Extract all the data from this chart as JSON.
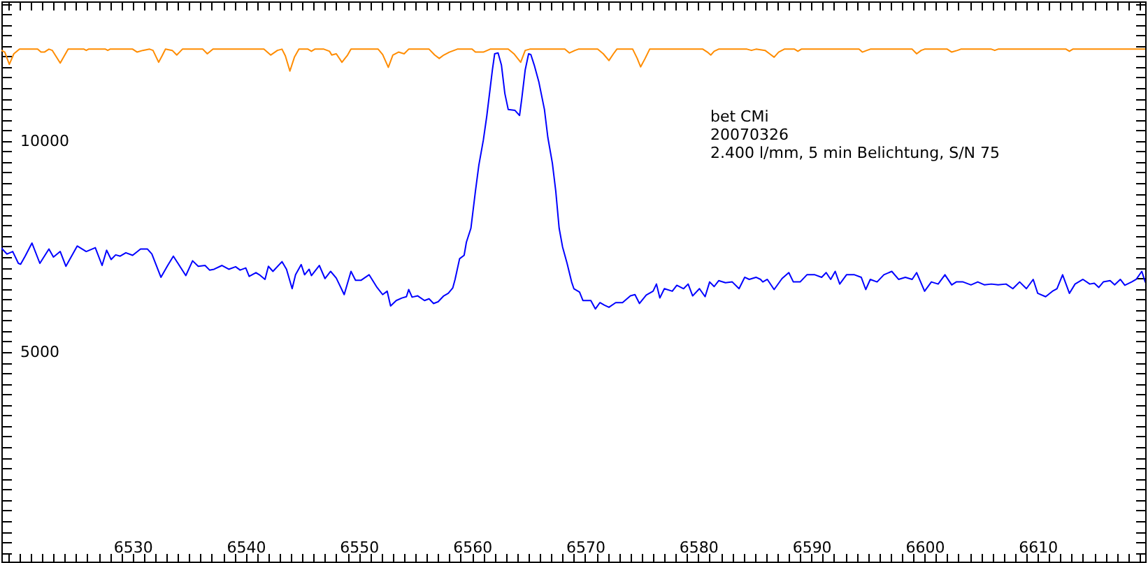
{
  "chart_data": {
    "type": "line",
    "annotations": [
      "bet CMi",
      "20070326",
      "2.400 l/mm, 5 min Belichtung, S/N 75"
    ],
    "xlim": [
      6518.4,
      6619.5
    ],
    "ylim": [
      40,
      13300
    ],
    "xticks": [
      {
        "value": 6519,
        "label": null
      },
      {
        "value": 6520,
        "label": null
      },
      {
        "value": 6521,
        "label": null
      },
      {
        "value": 6522,
        "label": null
      },
      {
        "value": 6523,
        "label": null
      },
      {
        "value": 6524,
        "label": null
      },
      {
        "value": 6525,
        "label": null
      },
      {
        "value": 6526,
        "label": null
      },
      {
        "value": 6527,
        "label": null
      },
      {
        "value": 6528,
        "label": null
      },
      {
        "value": 6529,
        "label": null
      },
      6530,
      {
        "value": 6531,
        "label": null
      },
      {
        "value": 6532,
        "label": null
      },
      {
        "value": 6533,
        "label": null
      },
      {
        "value": 6534,
        "label": null
      },
      {
        "value": 6535,
        "label": null
      },
      {
        "value": 6536,
        "label": null
      },
      {
        "value": 6537,
        "label": null
      },
      {
        "value": 6538,
        "label": null
      },
      {
        "value": 6539,
        "label": null
      },
      6540,
      {
        "value": 6541,
        "label": null
      },
      {
        "value": 6542,
        "label": null
      },
      {
        "value": 6543,
        "label": null
      },
      {
        "value": 6544,
        "label": null
      },
      {
        "value": 6545,
        "label": null
      },
      {
        "value": 6546,
        "label": null
      },
      {
        "value": 6547,
        "label": null
      },
      {
        "value": 6548,
        "label": null
      },
      {
        "value": 6549,
        "label": null
      },
      6550,
      {
        "value": 6551,
        "label": null
      },
      {
        "value": 6552,
        "label": null
      },
      {
        "value": 6553,
        "label": null
      },
      {
        "value": 6554,
        "label": null
      },
      {
        "value": 6555,
        "label": null
      },
      {
        "value": 6556,
        "label": null
      },
      {
        "value": 6557,
        "label": null
      },
      {
        "value": 6558,
        "label": null
      },
      {
        "value": 6559,
        "label": null
      },
      6560,
      {
        "value": 6561,
        "label": null
      },
      {
        "value": 6562,
        "label": null
      },
      {
        "value": 6563,
        "label": null
      },
      {
        "value": 6564,
        "label": null
      },
      {
        "value": 6565,
        "label": null
      },
      {
        "value": 6566,
        "label": null
      },
      {
        "value": 6567,
        "label": null
      },
      {
        "value": 6568,
        "label": null
      },
      {
        "value": 6569,
        "label": null
      },
      6570,
      {
        "value": 6571,
        "label": null
      },
      {
        "value": 6572,
        "label": null
      },
      {
        "value": 6573,
        "label": null
      },
      {
        "value": 6574,
        "label": null
      },
      {
        "value": 6575,
        "label": null
      },
      {
        "value": 6576,
        "label": null
      },
      {
        "value": 6577,
        "label": null
      },
      {
        "value": 6578,
        "label": null
      },
      {
        "value": 6579,
        "label": null
      },
      6580,
      {
        "value": 6581,
        "label": null
      },
      {
        "value": 6582,
        "label": null
      },
      {
        "value": 6583,
        "label": null
      },
      {
        "value": 6584,
        "label": null
      },
      {
        "value": 6585,
        "label": null
      },
      {
        "value": 6586,
        "label": null
      },
      {
        "value": 6587,
        "label": null
      },
      {
        "value": 6588,
        "label": null
      },
      {
        "value": 6589,
        "label": null
      },
      6590,
      {
        "value": 6591,
        "label": null
      },
      {
        "value": 6592,
        "label": null
      },
      {
        "value": 6593,
        "label": null
      },
      {
        "value": 6594,
        "label": null
      },
      {
        "value": 6595,
        "label": null
      },
      {
        "value": 6596,
        "label": null
      },
      {
        "value": 6597,
        "label": null
      },
      {
        "value": 6598,
        "label": null
      },
      {
        "value": 6599,
        "label": null
      },
      6600,
      {
        "value": 6601,
        "label": null
      },
      {
        "value": 6602,
        "label": null
      },
      {
        "value": 6603,
        "label": null
      },
      {
        "value": 6604,
        "label": null
      },
      {
        "value": 6605,
        "label": null
      },
      {
        "value": 6606,
        "label": null
      },
      {
        "value": 6607,
        "label": null
      },
      {
        "value": 6608,
        "label": null
      },
      {
        "value": 6609,
        "label": null
      },
      6610,
      {
        "value": 6611,
        "label": null
      },
      {
        "value": 6612,
        "label": null
      },
      {
        "value": 6613,
        "label": null
      },
      {
        "value": 6614,
        "label": null
      },
      {
        "value": 6615,
        "label": null
      },
      {
        "value": 6616,
        "label": null
      },
      {
        "value": 6617,
        "label": null
      },
      {
        "value": 6618,
        "label": null
      },
      {
        "value": 6619,
        "label": null
      }
    ],
    "yticks": [
      {
        "value": 250,
        "label": null
      },
      {
        "value": 500,
        "label": null
      },
      {
        "value": 750,
        "label": null
      },
      {
        "value": 1000,
        "label": null
      },
      {
        "value": 1250,
        "label": null
      },
      {
        "value": 1500,
        "label": null
      },
      {
        "value": 1750,
        "label": null
      },
      {
        "value": 2000,
        "label": null
      },
      {
        "value": 2250,
        "label": null
      },
      {
        "value": 2500,
        "label": null
      },
      {
        "value": 2750,
        "label": null
      },
      {
        "value": 3000,
        "label": null
      },
      {
        "value": 3250,
        "label": null
      },
      {
        "value": 3500,
        "label": null
      },
      {
        "value": 3750,
        "label": null
      },
      {
        "value": 4000,
        "label": null
      },
      {
        "value": 4250,
        "label": null
      },
      {
        "value": 4500,
        "label": null
      },
      {
        "value": 4750,
        "label": null
      },
      5000,
      {
        "value": 5250,
        "label": null
      },
      {
        "value": 5500,
        "label": null
      },
      {
        "value": 5750,
        "label": null
      },
      {
        "value": 6000,
        "label": null
      },
      {
        "value": 6250,
        "label": null
      },
      {
        "value": 6500,
        "label": null
      },
      {
        "value": 6750,
        "label": null
      },
      {
        "value": 7000,
        "label": null
      },
      {
        "value": 7250,
        "label": null
      },
      {
        "value": 7500,
        "label": null
      },
      {
        "value": 7750,
        "label": null
      },
      {
        "value": 8000,
        "label": null
      },
      {
        "value": 8250,
        "label": null
      },
      {
        "value": 8500,
        "label": null
      },
      {
        "value": 8750,
        "label": null
      },
      {
        "value": 9000,
        "label": null
      },
      {
        "value": 9250,
        "label": null
      },
      {
        "value": 9500,
        "label": null
      },
      {
        "value": 9750,
        "label": null
      },
      10000,
      {
        "value": 10250,
        "label": null
      },
      {
        "value": 10500,
        "label": null
      },
      {
        "value": 10750,
        "label": null
      },
      {
        "value": 11000,
        "label": null
      },
      {
        "value": 11250,
        "label": null
      },
      {
        "value": 11500,
        "label": null
      },
      {
        "value": 11750,
        "label": null
      },
      {
        "value": 12000,
        "label": null
      },
      {
        "value": 12250,
        "label": null
      },
      {
        "value": 12500,
        "label": null
      },
      {
        "value": 12750,
        "label": null
      },
      {
        "value": 13000,
        "label": null
      },
      {
        "value": 13250,
        "label": null
      }
    ],
    "series": [
      {
        "color": "#0000ff",
        "x": [
          6518.4,
          6518.9,
          6519.4,
          6519.9,
          6520.1,
          6520.5,
          6521.1,
          6521.8,
          6522.6,
          6523.0,
          6523.6,
          6524.1,
          6525.1,
          6525.9,
          6526.7,
          6527.3,
          6527.7,
          6528.1,
          6528.5,
          6528.9,
          6529.4,
          6530.0,
          6530.7,
          6531.3,
          6531.7,
          6532.5,
          6533.1,
          6533.6,
          6534.7,
          6535.3,
          6535.8,
          6536.4,
          6536.8,
          6537.2,
          6537.9,
          6538.5,
          6539.1,
          6539.5,
          6540.0,
          6540.3,
          6540.9,
          6541.2,
          6541.7,
          6542.0,
          6542.4,
          6543.2,
          6543.6,
          6544.1,
          6544.4,
          6544.9,
          6545.2,
          6545.6,
          6545.8,
          6546.5,
          6547.0,
          6547.5,
          6548.0,
          6548.7,
          6549.3,
          6549.7,
          6550.2,
          6550.9,
          6551.6,
          6552.1,
          6552.5,
          6552.8,
          6553.3,
          6553.8,
          6554.2,
          6554.4,
          6554.7,
          6555.2,
          6555.8,
          6556.2,
          6556.6,
          6557.0,
          6557.5,
          6557.9,
          6558.3,
          6558.5,
          6558.9,
          6559.3,
          6559.5,
          6559.9,
          6560.1,
          6560.3,
          6560.6,
          6561.0,
          6561.3,
          6561.6,
          6561.8,
          6562.0,
          6562.3,
          6562.6,
          6562.9,
          6563.2,
          6563.8,
          6564.2,
          6564.4,
          6564.7,
          6565.0,
          6565.2,
          6565.5,
          6565.9,
          6566.4,
          6566.7,
          6567.1,
          6567.4,
          6567.7,
          6568.0,
          6568.4,
          6568.8,
          6569.0,
          6569.5,
          6569.8,
          6570.5,
          6570.9,
          6571.3,
          6571.7,
          6572.1,
          6572.7,
          6573.3,
          6574.0,
          6574.4,
          6574.8,
          6575.4,
          6576.0,
          6576.3,
          6576.6,
          6577.0,
          6577.7,
          6578.1,
          6578.7,
          6579.1,
          6579.5,
          6580.1,
          6580.6,
          6581.0,
          6581.4,
          6581.8,
          6582.4,
          6583.0,
          6583.6,
          6584.1,
          6584.5,
          6585.1,
          6585.5,
          6585.7,
          6586.1,
          6586.7,
          6587.4,
          6588.0,
          6588.4,
          6589.0,
          6589.6,
          6590.3,
          6590.9,
          6591.3,
          6591.7,
          6592.1,
          6592.5,
          6593.1,
          6593.8,
          6594.4,
          6594.8,
          6595.2,
          6595.8,
          6596.4,
          6597.1,
          6597.7,
          6598.3,
          6598.9,
          6599.3,
          6600.0,
          6600.6,
          6601.2,
          6601.8,
          6602.4,
          6602.8,
          6603.4,
          6604.1,
          6604.7,
          6605.3,
          6605.9,
          6606.5,
          6607.2,
          6607.8,
          6608.4,
          6609.0,
          6609.6,
          6610.0,
          6610.7,
          6611.3,
          6611.7,
          6612.2,
          6612.8,
          6613.3,
          6614.0,
          6614.6,
          6615.0,
          6615.4,
          6615.8,
          6616.4,
          6616.8,
          6617.3,
          6617.7,
          6618.3,
          6618.7,
          6619.2,
          6619.5
        ],
        "values": [
          7460,
          7320,
          7380,
          7100,
          7080,
          7270,
          7580,
          7100,
          7440,
          7250,
          7380,
          7030,
          7510,
          7380,
          7470,
          7050,
          7410,
          7190,
          7300,
          7270,
          7350,
          7290,
          7440,
          7440,
          7320,
          6770,
          7050,
          7270,
          6810,
          7160,
          7030,
          7050,
          6940,
          6960,
          7050,
          6960,
          7020,
          6940,
          6990,
          6790,
          6880,
          6830,
          6720,
          7030,
          6910,
          7140,
          6960,
          6500,
          6830,
          7070,
          6830,
          6960,
          6810,
          7050,
          6740,
          6910,
          6750,
          6360,
          6910,
          6700,
          6700,
          6830,
          6530,
          6360,
          6440,
          6090,
          6220,
          6280,
          6310,
          6480,
          6300,
          6330,
          6220,
          6260,
          6150,
          6190,
          6330,
          6390,
          6520,
          6720,
          7210,
          7290,
          7600,
          7930,
          8370,
          8810,
          9420,
          10020,
          10580,
          11240,
          11680,
          12060,
          12080,
          11790,
          11120,
          10740,
          10720,
          10600,
          11010,
          11680,
          12060,
          12040,
          11790,
          11400,
          10740,
          10080,
          9470,
          8810,
          7930,
          7490,
          7100,
          6660,
          6500,
          6420,
          6220,
          6220,
          6020,
          6170,
          6110,
          6060,
          6170,
          6170,
          6330,
          6360,
          6150,
          6350,
          6440,
          6610,
          6280,
          6500,
          6440,
          6580,
          6500,
          6610,
          6330,
          6500,
          6310,
          6660,
          6550,
          6690,
          6640,
          6660,
          6500,
          6770,
          6720,
          6770,
          6720,
          6660,
          6720,
          6480,
          6740,
          6880,
          6660,
          6660,
          6830,
          6830,
          6770,
          6880,
          6720,
          6910,
          6610,
          6830,
          6830,
          6770,
          6480,
          6720,
          6660,
          6830,
          6910,
          6720,
          6770,
          6720,
          6880,
          6440,
          6660,
          6610,
          6830,
          6590,
          6660,
          6660,
          6590,
          6660,
          6590,
          6610,
          6590,
          6610,
          6500,
          6660,
          6500,
          6720,
          6390,
          6310,
          6440,
          6500,
          6830,
          6390,
          6610,
          6720,
          6610,
          6630,
          6530,
          6660,
          6690,
          6590,
          6720,
          6580,
          6660,
          6720,
          6910,
          6660
        ]
      },
      {
        "color": "#ff8c00",
        "x": [
          6518.4,
          6518.7,
          6519.1,
          6519.5,
          6520.0,
          6521.6,
          6521.9,
          6522.2,
          6522.6,
          6522.9,
          6523.6,
          6524.3,
          6525.7,
          6525.9,
          6526.1,
          6527.6,
          6527.8,
          6528.0,
          6530.0,
          6530.4,
          6530.9,
          6531.5,
          6531.8,
          6532.3,
          6532.6,
          6532.9,
          6533.5,
          6533.9,
          6534.4,
          6536.2,
          6536.6,
          6537.1,
          6541.6,
          6542.2,
          6542.8,
          6543.2,
          6543.5,
          6543.9,
          6544.3,
          6544.7,
          6545.5,
          6545.8,
          6546.1,
          6546.9,
          6547.4,
          6547.6,
          6548.0,
          6548.5,
          6549.0,
          6549.3,
          6551.7,
          6552.1,
          6552.6,
          6553.0,
          6553.5,
          6554.0,
          6554.4,
          6556.2,
          6556.7,
          6557.1,
          6557.5,
          6558.0,
          6558.7,
          6560.0,
          6560.3,
          6561.0,
          6561.6,
          6563.2,
          6563.7,
          6564.3,
          6564.7,
          6565.1,
          6568.2,
          6568.6,
          6569.1,
          6569.4,
          6571.1,
          6571.6,
          6572.1,
          6572.5,
          6572.8,
          6574.2,
          6574.6,
          6574.9,
          6575.3,
          6575.7,
          6580.4,
          6580.8,
          6581.1,
          6581.4,
          6581.8,
          6584.3,
          6584.7,
          6585.1,
          6585.9,
          6586.3,
          6586.7,
          6587.1,
          6587.6,
          6588.5,
          6588.8,
          6589.1,
          6594.2,
          6594.5,
          6594.9,
          6595.2,
          6598.9,
          6599.3,
          6599.7,
          6600.0,
          6602.0,
          6602.4,
          6602.9,
          6603.2,
          6605.9,
          6606.2,
          6606.5,
          6612.5,
          6612.8,
          6613.1,
          6619.5
        ],
        "values": [
          12140,
          12100,
          11810,
          12060,
          12170,
          12170,
          12100,
          12100,
          12170,
          12140,
          11840,
          12170,
          12170,
          12140,
          12170,
          12170,
          12140,
          12170,
          12170,
          12100,
          12140,
          12170,
          12140,
          11860,
          12010,
          12170,
          12140,
          12030,
          12170,
          12170,
          12060,
          12170,
          12170,
          12030,
          12140,
          12170,
          12010,
          11650,
          11980,
          12170,
          12170,
          12120,
          12170,
          12170,
          12120,
          12030,
          12060,
          11860,
          12030,
          12170,
          12170,
          12040,
          11740,
          12030,
          12100,
          12060,
          12170,
          12170,
          12030,
          11950,
          12030,
          12100,
          12170,
          12170,
          12100,
          12100,
          12170,
          12170,
          12060,
          11860,
          12140,
          12170,
          12170,
          12080,
          12140,
          12170,
          12170,
          12060,
          11900,
          12060,
          12170,
          12170,
          11950,
          11750,
          11950,
          12170,
          12170,
          12100,
          12030,
          12120,
          12170,
          12170,
          12140,
          12170,
          12140,
          12060,
          11980,
          12100,
          12170,
          12170,
          12120,
          12170,
          12170,
          12100,
          12140,
          12170,
          12170,
          12060,
          12140,
          12170,
          12170,
          12100,
          12140,
          12170,
          12170,
          12140,
          12170,
          12170,
          12120,
          12170,
          12170
        ]
      }
    ]
  }
}
